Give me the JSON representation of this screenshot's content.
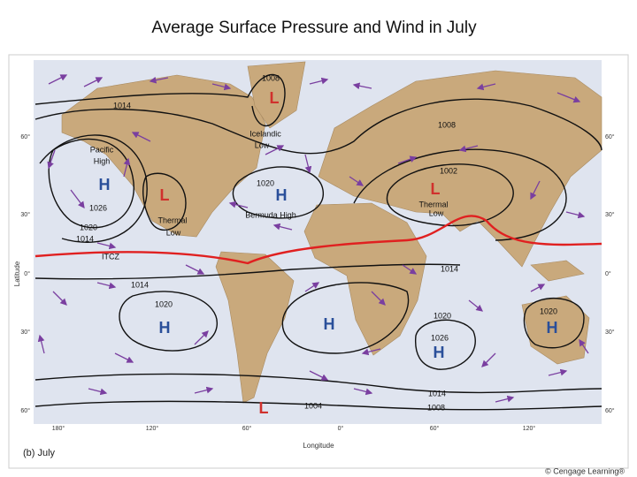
{
  "header": {
    "title": "Average Surface Pressure and Wind in July"
  },
  "map": {
    "labels": [
      "1008",
      "L",
      "1014",
      "Icelandic",
      "Low",
      "1008",
      "Pacific",
      "High",
      "H",
      "L",
      "1020",
      "H",
      "1002",
      "L",
      "Thermal",
      "Low",
      "1026",
      "Thermal",
      "Low",
      "Bermuda High",
      "1020",
      "1014",
      "ITCZ",
      "1014",
      "1014",
      "1020",
      "H",
      "H",
      "1020",
      "1020",
      "1026",
      "H",
      "H",
      "1014",
      "L",
      "1004",
      "1008"
    ]
  },
  "axes": {
    "latitude_left": [
      "60°",
      "30°",
      "0°",
      "30°",
      "60°"
    ],
    "latitude_right": [
      "60°",
      "30°",
      "0°",
      "30°",
      "60°"
    ],
    "longitude": [
      "180°",
      "120°",
      "60°",
      "0°",
      "60°",
      "120°"
    ],
    "latitude_title": "Latitude",
    "longitude_title": "Longitude"
  },
  "caption": "(b) July",
  "credit": "© Cengage Learning®"
}
